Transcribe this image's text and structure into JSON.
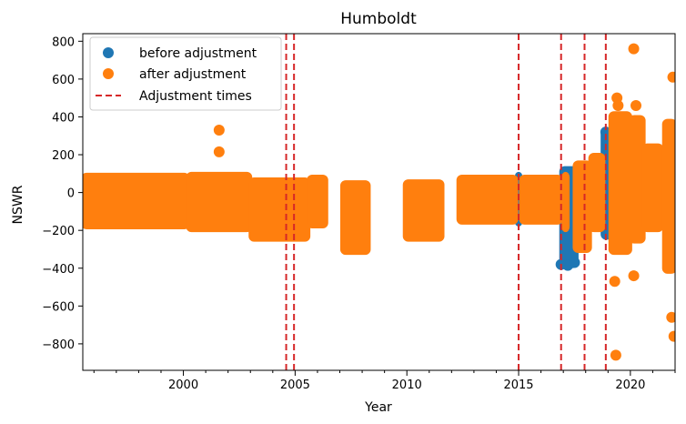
{
  "chart_data": {
    "type": "scatter",
    "title": "Humboldt",
    "xlabel": "Year",
    "ylabel": "NSWR",
    "xlim": [
      1995.5,
      2022.0
    ],
    "ylim": [
      -940,
      840
    ],
    "x_ticks": [
      2000,
      2005,
      2010,
      2015,
      2020
    ],
    "x_tick_labels": [
      "2000",
      "2005",
      "2010",
      "2015",
      "2020"
    ],
    "y_ticks": [
      -800,
      -600,
      -400,
      -200,
      0,
      200,
      400,
      600,
      800
    ],
    "y_tick_labels": [
      "−800",
      "−600",
      "−400",
      "−200",
      "0",
      "200",
      "400",
      "600",
      "800"
    ],
    "grid": false,
    "legend": {
      "position": "upper-left",
      "entries": [
        "before adjustment",
        "after adjustment",
        "Adjustment times"
      ]
    },
    "colors": {
      "before": "#1f77b4",
      "after": "#ff7f0e",
      "adjustment": "#d62728"
    },
    "adjustment_times": [
      2004.6,
      2004.95,
      2015.0,
      2016.9,
      2017.95,
      2018.9
    ],
    "series": [
      {
        "name": "before adjustment",
        "clusters": [
          {
            "x": 2014.9,
            "x2": 2015.1,
            "y_low": -170,
            "y_high": 100
          },
          {
            "x": 2016.9,
            "x2": 2017.6,
            "y_low": -390,
            "y_high": 130
          },
          {
            "x": 2018.75,
            "x2": 2019.1,
            "y_low": -240,
            "y_high": 330
          }
        ],
        "points": [
          {
            "x": 2016.9,
            "y": -380
          },
          {
            "x": 2017.2,
            "y": -385
          },
          {
            "x": 2017.5,
            "y": -370
          },
          {
            "x": 2018.9,
            "y": 320
          },
          {
            "x": 2019.0,
            "y": 300
          }
        ]
      },
      {
        "name": "after adjustment",
        "clusters": [
          {
            "x": 1995.5,
            "x2": 2000.2,
            "y_low": -185,
            "y_high": 95
          },
          {
            "x": 2000.2,
            "x2": 2003.0,
            "y_low": -200,
            "y_high": 100
          },
          {
            "x": 2003.0,
            "x2": 2005.6,
            "y_low": -250,
            "y_high": 70
          },
          {
            "x": 2005.6,
            "x2": 2006.4,
            "y_low": -180,
            "y_high": 85
          },
          {
            "x": 2007.1,
            "x2": 2008.3,
            "y_low": -320,
            "y_high": 55
          },
          {
            "x": 2009.9,
            "x2": 2011.6,
            "y_low": -250,
            "y_high": 60
          },
          {
            "x": 2012.3,
            "x2": 2014.9,
            "y_low": -160,
            "y_high": 85
          },
          {
            "x": 2015.1,
            "x2": 2016.9,
            "y_low": -160,
            "y_high": 85
          },
          {
            "x": 2017.0,
            "x2": 2017.2,
            "y_low": -200,
            "y_high": 100
          },
          {
            "x": 2017.5,
            "x2": 2018.2,
            "y_low": -310,
            "y_high": 160
          },
          {
            "x": 2018.2,
            "x2": 2018.8,
            "y_low": -200,
            "y_high": 200
          },
          {
            "x": 2019.1,
            "x2": 2020.0,
            "y_low": -320,
            "y_high": 420
          },
          {
            "x": 2020.0,
            "x2": 2020.6,
            "y_low": -260,
            "y_high": 400
          },
          {
            "x": 2020.6,
            "x2": 2021.4,
            "y_low": -200,
            "y_high": 250
          },
          {
            "x": 2021.5,
            "x2": 2022.0,
            "y_low": -420,
            "y_high": 380
          }
        ],
        "points": [
          {
            "x": 2001.6,
            "y": 330
          },
          {
            "x": 2001.6,
            "y": 215
          },
          {
            "x": 2019.35,
            "y": -860
          },
          {
            "x": 2019.3,
            "y": -470
          },
          {
            "x": 2019.4,
            "y": 500
          },
          {
            "x": 2019.45,
            "y": 460
          },
          {
            "x": 2020.15,
            "y": 760
          },
          {
            "x": 2020.15,
            "y": -440
          },
          {
            "x": 2020.25,
            "y": 460
          },
          {
            "x": 2021.9,
            "y": 610
          },
          {
            "x": 2021.85,
            "y": -660
          },
          {
            "x": 2021.95,
            "y": -760
          }
        ]
      }
    ]
  }
}
